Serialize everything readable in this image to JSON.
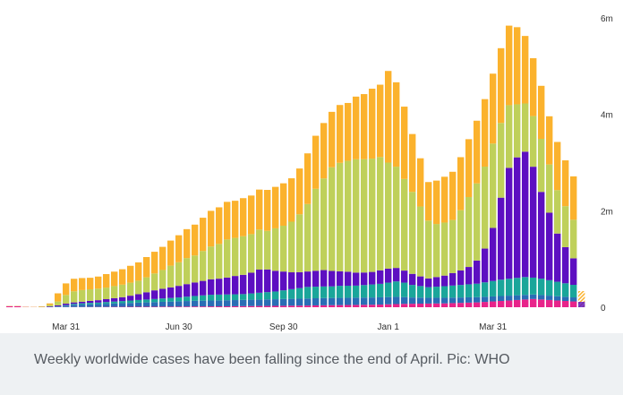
{
  "caption": "Weekly worldwide cases have been falling since the end of April. Pic: WHO",
  "chart_data": {
    "type": "bar",
    "stacked": true,
    "x_tick_labels": [
      "Mar 31",
      "Jun 30",
      "Sep 30",
      "Jan 1",
      "Mar 31"
    ],
    "x_tick_week_index": [
      7,
      21,
      34,
      47,
      60
    ],
    "y_ticks": [
      {
        "value": 0,
        "label": "0"
      },
      {
        "value": 2000000,
        "label": "2m"
      },
      {
        "value": 4000000,
        "label": "4m"
      },
      {
        "value": 6000000,
        "label": "6m"
      }
    ],
    "ylim": [
      0,
      6000000
    ],
    "grid": false,
    "legend": "none",
    "series": [
      {
        "color": "#e8238a",
        "values": [
          20000,
          20000,
          5000,
          3000,
          3000,
          3000,
          3000,
          4000,
          5000,
          5000,
          6000,
          6000,
          7000,
          8000,
          8000,
          9000,
          10000,
          10000,
          10000,
          12000,
          12000,
          13000,
          14000,
          15000,
          16000,
          17000,
          18000,
          19000,
          20000,
          22000,
          24000,
          26000,
          27000,
          28000,
          30000,
          32000,
          33000,
          35000,
          38000,
          40000,
          42000,
          44000,
          46000,
          48000,
          50000,
          52000,
          55000,
          60000,
          65000,
          70000,
          72000,
          74000,
          76000,
          78000,
          80000,
          85000,
          90000,
          95000,
          100000,
          110000,
          120000,
          130000,
          140000,
          150000,
          160000,
          170000,
          160000,
          150000,
          140000,
          130000,
          120000
        ]
      },
      {
        "color": "#2a6db5",
        "values": [
          2000,
          2000,
          1000,
          1000,
          2000,
          4000,
          10000,
          30000,
          45000,
          50000,
          55000,
          60000,
          65000,
          70000,
          75000,
          80000,
          85000,
          90000,
          95000,
          100000,
          105000,
          110000,
          115000,
          118000,
          120000,
          122000,
          124000,
          126000,
          128000,
          130000,
          132000,
          134000,
          136000,
          138000,
          140000,
          142000,
          144000,
          146000,
          148000,
          150000,
          150000,
          150000,
          150000,
          150000,
          150000,
          150000,
          150000,
          150000,
          150000,
          140000,
          130000,
          125000,
          120000,
          118000,
          116000,
          114000,
          112000,
          110000,
          108000,
          106000,
          104000,
          102000,
          100000,
          98000,
          96000,
          94000,
          92000,
          90000,
          88000,
          86000,
          84000
        ]
      },
      {
        "color": "#1aa69a",
        "values": [
          0,
          0,
          0,
          0,
          0,
          2000,
          5000,
          10000,
          20000,
          25000,
          30000,
          30000,
          35000,
          40000,
          45000,
          50000,
          55000,
          60000,
          65000,
          70000,
          75000,
          80000,
          90000,
          100000,
          110000,
          120000,
          120000,
          120000,
          120000,
          120000,
          130000,
          140000,
          150000,
          160000,
          180000,
          200000,
          220000,
          240000,
          240000,
          240000,
          240000,
          250000,
          250000,
          250000,
          260000,
          270000,
          280000,
          300000,
          320000,
          300000,
          260000,
          240000,
          220000,
          230000,
          240000,
          250000,
          260000,
          270000,
          280000,
          300000,
          320000,
          340000,
          350000,
          360000,
          370000,
          350000,
          340000,
          320000,
          300000,
          280000,
          260000
        ]
      },
      {
        "color": "#5d0fc1",
        "values": [
          0,
          0,
          0,
          0,
          0,
          10000,
          20000,
          30000,
          30000,
          35000,
          40000,
          50000,
          60000,
          70000,
          80000,
          100000,
          120000,
          150000,
          180000,
          200000,
          220000,
          240000,
          260000,
          280000,
          300000,
          320000,
          330000,
          350000,
          380000,
          400000,
          430000,
          480000,
          470000,
          430000,
          390000,
          350000,
          330000,
          320000,
          330000,
          340000,
          320000,
          300000,
          290000,
          270000,
          260000,
          260000,
          280000,
          290000,
          280000,
          250000,
          230000,
          200000,
          180000,
          200000,
          220000,
          260000,
          300000,
          360000,
          480000,
          700000,
          1100000,
          1700000,
          2300000,
          2500000,
          2600000,
          2300000,
          1800000,
          1400000,
          1000000,
          750000,
          550000
        ]
      },
      {
        "color": "#bfd05a",
        "values": [
          0,
          0,
          0,
          0,
          5000,
          30000,
          80000,
          180000,
          230000,
          240000,
          240000,
          240000,
          240000,
          250000,
          260000,
          270000,
          280000,
          310000,
          350000,
          390000,
          450000,
          490000,
          540000,
          560000,
          620000,
          680000,
          720000,
          790000,
          790000,
          800000,
          800000,
          830000,
          800000,
          880000,
          950000,
          1050000,
          1200000,
          1400000,
          1700000,
          1900000,
          2150000,
          2250000,
          2300000,
          2350000,
          2350000,
          2350000,
          2350000,
          2200000,
          2100000,
          1900000,
          1700000,
          1450000,
          1200000,
          1100000,
          1100000,
          1100000,
          1250000,
          1450000,
          1600000,
          1700000,
          1750000,
          1550000,
          1300000,
          1100000,
          1000000,
          1050000,
          1100000,
          1000000,
          900000,
          850000,
          800000
        ]
      },
      {
        "color": "#fbb22d",
        "values": [
          5000,
          5000,
          5000,
          5000,
          10000,
          30000,
          170000,
          240000,
          260000,
          250000,
          240000,
          250000,
          280000,
          300000,
          320000,
          350000,
          380000,
          420000,
          450000,
          480000,
          520000,
          560000,
          600000,
          640000,
          690000,
          740000,
          760000,
          780000,
          770000,
          790000,
          800000,
          830000,
          850000,
          860000,
          880000,
          900000,
          950000,
          1050000,
          1100000,
          1150000,
          1150000,
          1200000,
          1200000,
          1300000,
          1350000,
          1450000,
          1500000,
          1900000,
          1750000,
          1500000,
          1200000,
          1000000,
          800000,
          900000,
          950000,
          1000000,
          1100000,
          1200000,
          1300000,
          1400000,
          1450000,
          1550000,
          1650000,
          1600000,
          1400000,
          1200000,
          1100000,
          1000000,
          1000000,
          950000,
          900000
        ]
      }
    ]
  }
}
